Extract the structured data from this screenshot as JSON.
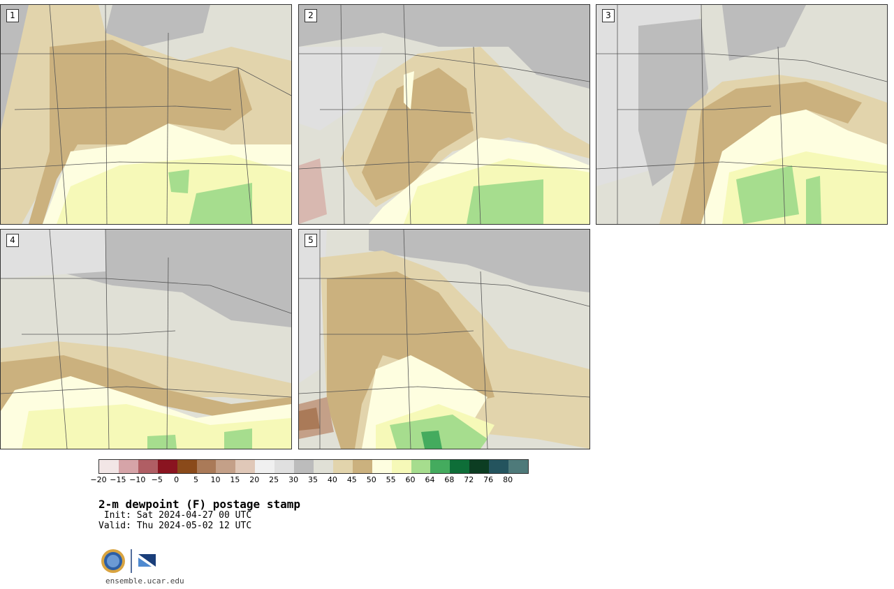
{
  "panels": [
    {
      "label": "1"
    },
    {
      "label": "2"
    },
    {
      "label": "3"
    },
    {
      "label": "4"
    },
    {
      "label": "5"
    }
  ],
  "colorbar": {
    "ticks": [
      "−20",
      "−15",
      "−10",
      "−5",
      "0",
      "5",
      "10",
      "15",
      "20",
      "25",
      "30",
      "35",
      "40",
      "45",
      "50",
      "55",
      "60",
      "64",
      "68",
      "72",
      "76",
      "80"
    ],
    "colors": [
      "#f2e6e6",
      "#d6a4a8",
      "#b05e64",
      "#8a1420",
      "#8a4a1a",
      "#aa7a58",
      "#c4a088",
      "#e0c8b8",
      "#f0f0f0",
      "#e0e0e0",
      "#bcbcbc",
      "#e0e0d6",
      "#e2d4ac",
      "#cbb17e",
      "#fefee0",
      "#f6f9b8",
      "#a6dd8e",
      "#44ab5e",
      "#0e6e38",
      "#0c3d22",
      "#24545e",
      "#4e7a7a"
    ]
  },
  "title": "2-m dewpoint (F) postage stamp",
  "init": " Init: Sat 2024-04-27 00 UTC",
  "valid": "Valid: Thu 2024-05-02 12 UTC",
  "logos": {
    "nsf": "NSF",
    "ncar": "NCAR"
  },
  "footer": "ensemble.ucar.edu"
}
